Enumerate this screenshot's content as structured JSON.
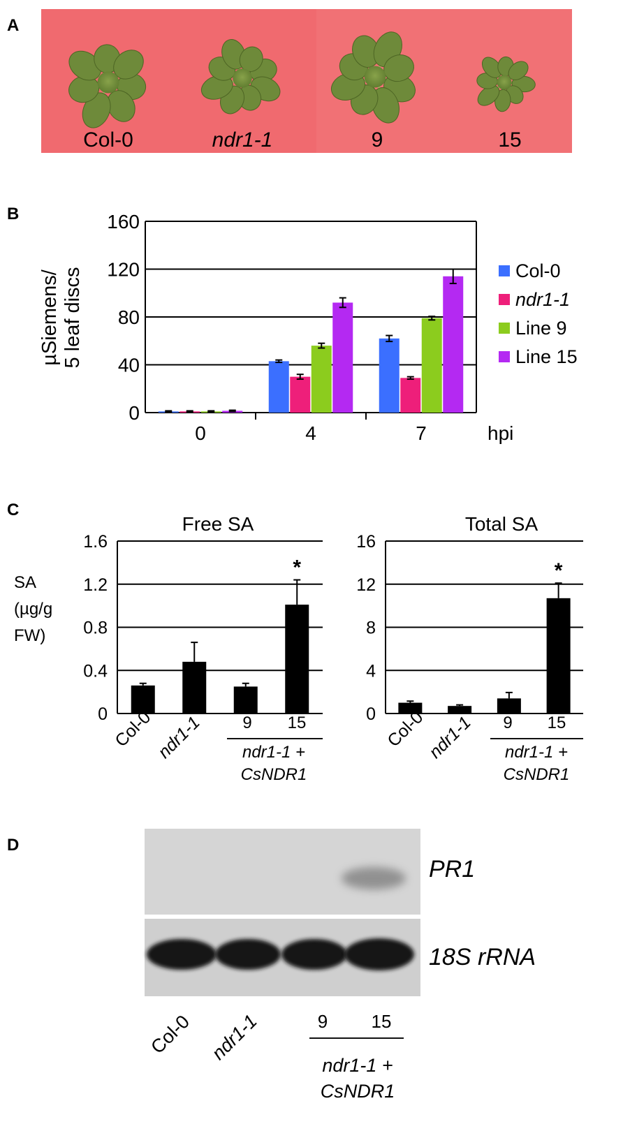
{
  "panel_a": {
    "label": "A",
    "plants": [
      "Col-0",
      "ndr1-1",
      "9",
      "15"
    ],
    "background_color": "#f06a6f",
    "leaf_color": "#6e8a3a"
  },
  "panel_b": {
    "label": "B",
    "chart_data": {
      "type": "bar",
      "title": "",
      "ylabel_line1": "µSiemens/",
      "ylabel_line2": "5 leaf discs",
      "xlabel": "hpi",
      "categories": [
        "0",
        "4",
        "7"
      ],
      "ylim": [
        0,
        160
      ],
      "yticks": [
        0,
        40,
        80,
        120,
        160
      ],
      "series": [
        {
          "name": "Col-0",
          "color": "#3b6fff",
          "values": [
            1,
            43,
            62
          ],
          "errors": [
            0.5,
            1,
            2.5
          ]
        },
        {
          "name": "ndr1-1",
          "color": "#ee1f7a",
          "values": [
            1,
            30,
            29
          ],
          "errors": [
            0.5,
            2,
            1
          ]
        },
        {
          "name": "Line 9",
          "color": "#8ccc1e",
          "values": [
            1,
            56,
            79
          ],
          "errors": [
            0.5,
            2,
            1.5
          ]
        },
        {
          "name": "Line 15",
          "color": "#b429f2",
          "values": [
            1.5,
            92,
            114
          ],
          "errors": [
            0.5,
            4,
            6
          ]
        }
      ],
      "legend_position": "right"
    }
  },
  "panel_c": {
    "label": "C",
    "ylabel_line1": "SA",
    "ylabel_line2": "(µg/g",
    "ylabel_line3": "FW)",
    "xtick_col0": "Col-0",
    "xtick_ndr": "ndr1-1",
    "xtick_9": "9",
    "xtick_15": "15",
    "group_line1": "ndr1-1 +",
    "group_line2": "CsNDR1",
    "chart_data": [
      {
        "type": "bar",
        "title": "Free SA",
        "categories": [
          "Col-0",
          "ndr1-1",
          "9",
          "15"
        ],
        "values": [
          0.26,
          0.48,
          0.25,
          1.01
        ],
        "errors": [
          0.02,
          0.18,
          0.03,
          0.23
        ],
        "significance": [
          "",
          "",
          "",
          "*"
        ],
        "ylim": [
          0,
          1.6
        ],
        "yticks": [
          "0",
          "0.4",
          "0.8",
          "1.2",
          "1.6"
        ],
        "ytick_values": [
          0,
          0.4,
          0.8,
          1.2,
          1.6
        ]
      },
      {
        "type": "bar",
        "title": "Total SA",
        "categories": [
          "Col-0",
          "ndr1-1",
          "9",
          "15"
        ],
        "values": [
          1.0,
          0.7,
          1.4,
          10.7
        ],
        "errors": [
          0.15,
          0.1,
          0.55,
          1.4
        ],
        "significance": [
          "",
          "",
          "",
          "*"
        ],
        "ylim": [
          0,
          16
        ],
        "yticks": [
          "0",
          "4",
          "8",
          "12",
          "16"
        ],
        "ytick_values": [
          0,
          4,
          8,
          12,
          16
        ]
      }
    ]
  },
  "panel_d": {
    "label": "D",
    "blot_labels": [
      "PR1",
      "18S rRNA"
    ],
    "lanes": [
      "Col-0",
      "ndr1-1",
      "9",
      "15"
    ],
    "group_line1": "ndr1-1 +",
    "group_line2": "CsNDR1"
  }
}
